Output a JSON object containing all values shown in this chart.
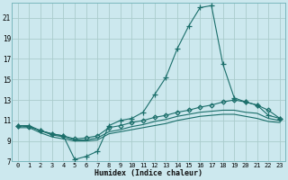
{
  "xlabel": "Humidex (Indice chaleur)",
  "bg_color": "#cce8ee",
  "grid_color": "#aacccc",
  "line_color": "#1a6e6a",
  "xlim": [
    -0.5,
    23.5
  ],
  "ylim": [
    7,
    22.5
  ],
  "xticks": [
    0,
    1,
    2,
    3,
    4,
    5,
    6,
    7,
    8,
    9,
    10,
    11,
    12,
    13,
    14,
    15,
    16,
    17,
    18,
    19,
    20,
    21,
    22,
    23
  ],
  "yticks": [
    7,
    9,
    11,
    13,
    15,
    17,
    19,
    21
  ],
  "series": [
    {
      "x": [
        0,
        1,
        2,
        3,
        4,
        5,
        6,
        7,
        8,
        9,
        10,
        11,
        12,
        13,
        14,
        15,
        16,
        17,
        18,
        19,
        20,
        21,
        22,
        23
      ],
      "y": [
        10.5,
        10.5,
        10.0,
        9.7,
        9.5,
        7.2,
        7.5,
        8.0,
        10.5,
        11.0,
        11.2,
        11.8,
        13.5,
        15.2,
        18.0,
        20.2,
        22.0,
        22.2,
        16.5,
        13.2,
        12.8,
        12.5,
        11.5,
        11.2
      ],
      "marker": "+",
      "markersize": 4
    },
    {
      "x": [
        0,
        1,
        2,
        3,
        4,
        5,
        6,
        7,
        8,
        9,
        10,
        11,
        12,
        13,
        14,
        15,
        16,
        17,
        18,
        19,
        20,
        21,
        22,
        23
      ],
      "y": [
        10.5,
        10.4,
        10.0,
        9.7,
        9.5,
        9.2,
        9.3,
        9.5,
        10.3,
        10.5,
        10.8,
        11.0,
        11.3,
        11.5,
        11.8,
        12.0,
        12.3,
        12.5,
        12.8,
        13.0,
        12.8,
        12.5,
        12.0,
        11.2
      ],
      "marker": "D",
      "markersize": 2.5
    },
    {
      "x": [
        0,
        1,
        2,
        3,
        4,
        5,
        6,
        7,
        8,
        9,
        10,
        11,
        12,
        13,
        14,
        15,
        16,
        17,
        18,
        19,
        20,
        21,
        22,
        23
      ],
      "y": [
        10.5,
        10.4,
        10.0,
        9.6,
        9.4,
        9.1,
        9.1,
        9.3,
        9.9,
        10.1,
        10.4,
        10.6,
        10.9,
        11.1,
        11.4,
        11.6,
        11.8,
        11.9,
        12.0,
        12.0,
        11.8,
        11.7,
        11.2,
        11.0
      ],
      "marker": null,
      "markersize": null
    },
    {
      "x": [
        0,
        1,
        2,
        3,
        4,
        5,
        6,
        7,
        8,
        9,
        10,
        11,
        12,
        13,
        14,
        15,
        16,
        17,
        18,
        19,
        20,
        21,
        22,
        23
      ],
      "y": [
        10.3,
        10.3,
        9.8,
        9.4,
        9.2,
        9.0,
        9.0,
        9.1,
        9.7,
        9.9,
        10.1,
        10.3,
        10.5,
        10.7,
        11.0,
        11.2,
        11.4,
        11.5,
        11.6,
        11.6,
        11.4,
        11.2,
        10.9,
        10.8
      ],
      "marker": null,
      "markersize": null
    }
  ]
}
